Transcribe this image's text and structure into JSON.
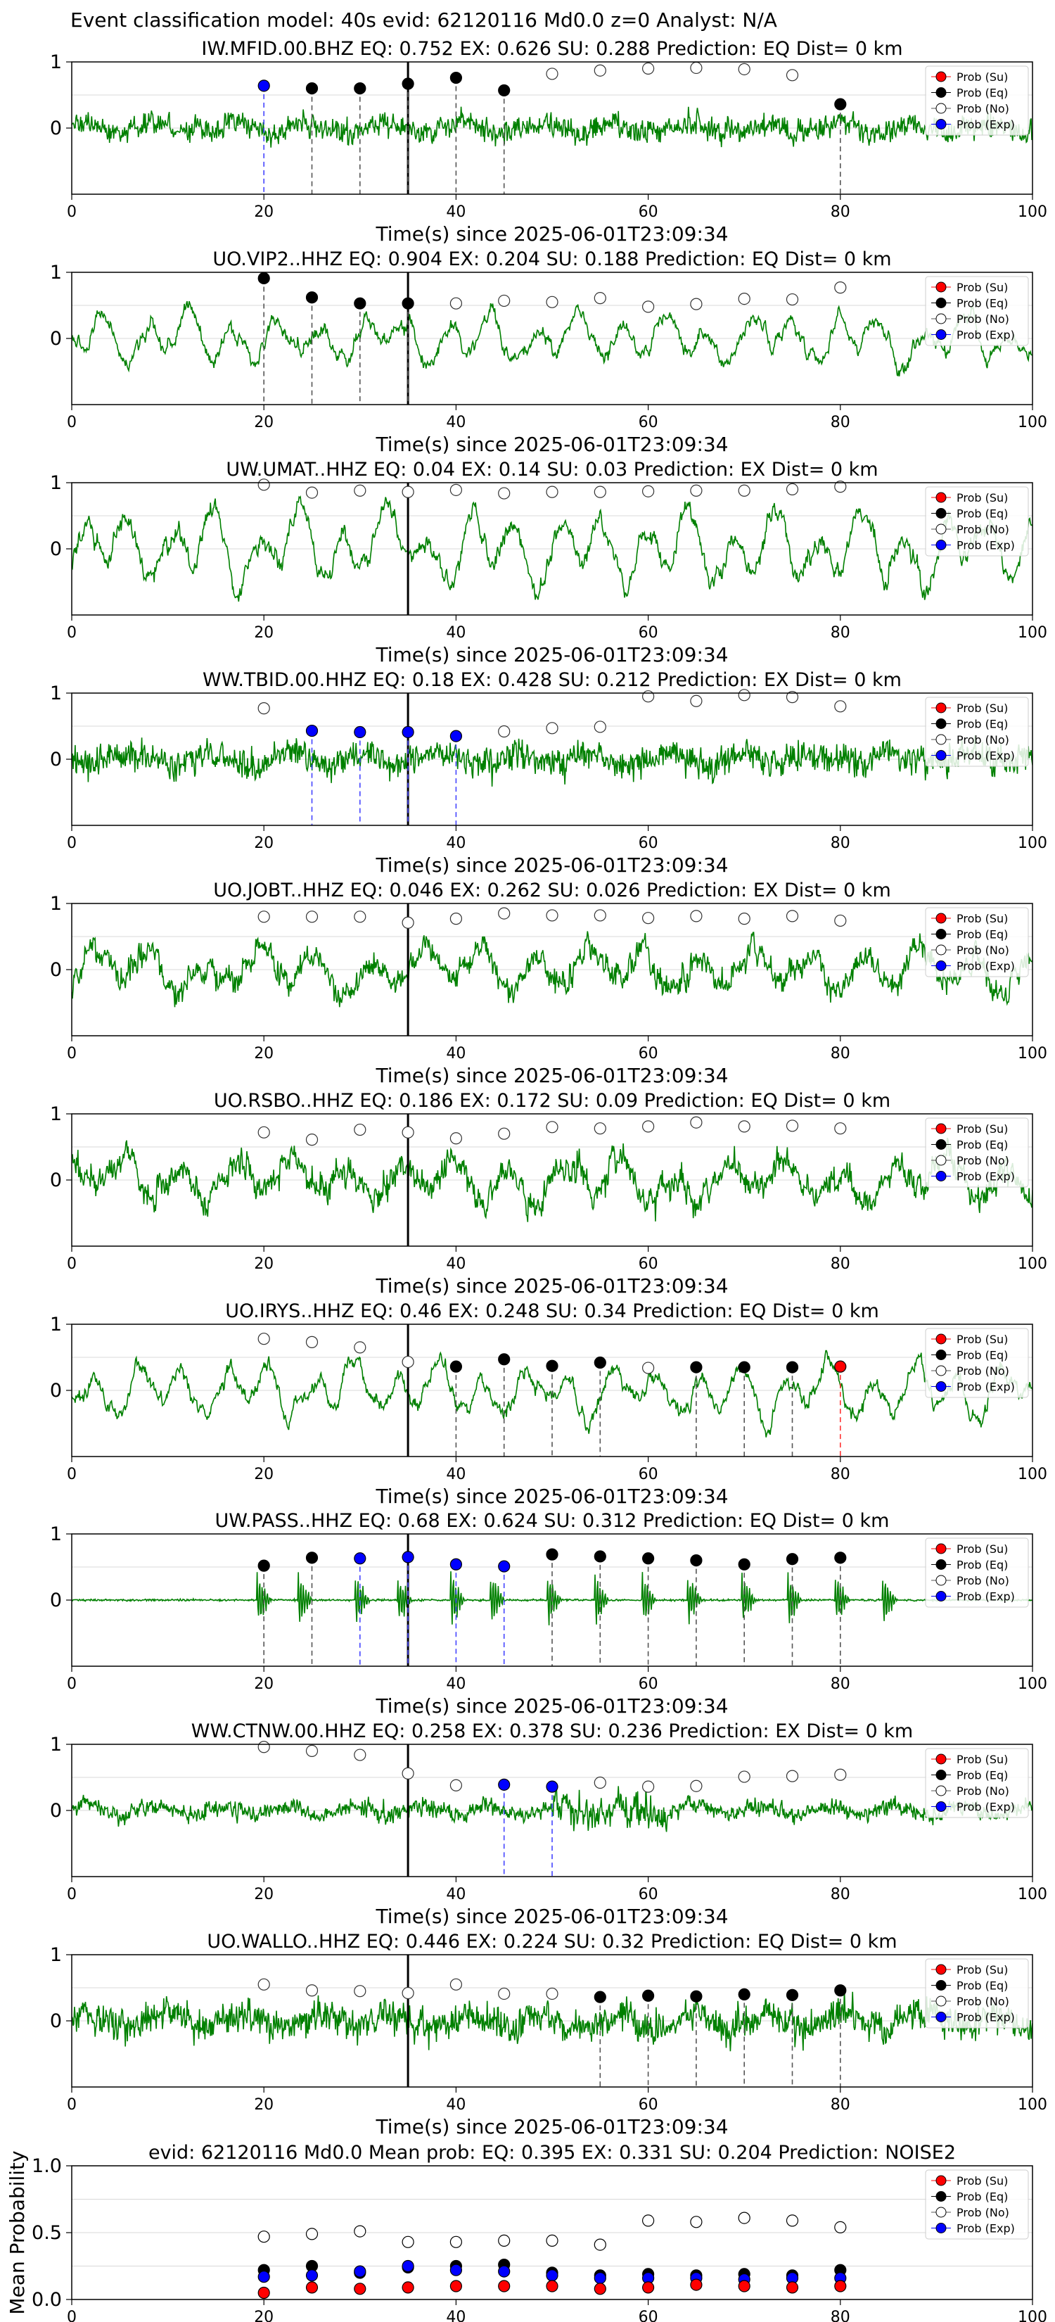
{
  "figure": {
    "suptitle": "Event classification model: 40s evid: 62120116 Md0.0 z=0 Analyst: N/A"
  },
  "legend_labels": [
    "Prob (Su)",
    "Prob (Eq)",
    "Prob (No)",
    "Prob (Exp)"
  ],
  "colors": {
    "trace": "#008000",
    "su": "#ff0000",
    "eq": "#000000",
    "no": "#ffffff",
    "exp": "#0000ff",
    "pick_line": "#000000",
    "grid": "#d8d8d8"
  },
  "chart_data": [
    {
      "type": "line",
      "title": "IW.MFID.00.BHZ   EQ: 0.752   EX: 0.626   SU: 0.288   Prediction: EQ    Dist= 0 km",
      "xlabel": "Time(s) since 2025-06-01T23:09:34",
      "xlim": [
        0,
        100
      ],
      "ylim": [
        -1,
        1
      ],
      "xticks": [
        0,
        20,
        40,
        60,
        80,
        100
      ],
      "yticks": [
        0,
        1
      ],
      "pick_time": 35,
      "trace_style": "noisy",
      "amplitude": 0.35,
      "window_times": [
        20,
        25,
        30,
        35,
        40,
        45,
        50,
        55,
        60,
        65,
        70,
        75,
        80
      ],
      "classes": [
        "exp",
        "eq",
        "eq",
        "eq",
        "eq",
        "eq",
        "no",
        "no",
        "no",
        "no",
        "no",
        "no",
        "eq"
      ],
      "probs": [
        0.64,
        0.6,
        0.6,
        0.67,
        0.76,
        0.57,
        0.82,
        0.87,
        0.9,
        0.91,
        0.89,
        0.8,
        0.36
      ]
    },
    {
      "type": "line",
      "title": "UO.VIP2..HHZ   EQ: 0.904   EX: 0.204   SU: 0.188   Prediction: EQ    Dist= 0 km",
      "xlabel": "Time(s) since 2025-06-01T23:09:34",
      "xlim": [
        0,
        100
      ],
      "ylim": [
        -1,
        1
      ],
      "xticks": [
        0,
        20,
        40,
        60,
        80,
        100
      ],
      "yticks": [
        0,
        1
      ],
      "pick_time": 35,
      "trace_style": "smooth",
      "amplitude": 0.45,
      "window_times": [
        20,
        25,
        30,
        35,
        40,
        45,
        50,
        55,
        60,
        65,
        70,
        75,
        80
      ],
      "classes": [
        "eq",
        "eq",
        "eq",
        "eq",
        "no",
        "no",
        "no",
        "no",
        "no",
        "no",
        "no",
        "no",
        "no"
      ],
      "probs": [
        0.91,
        0.62,
        0.53,
        0.53,
        0.53,
        0.57,
        0.55,
        0.61,
        0.48,
        0.52,
        0.6,
        0.59,
        0.77
      ]
    },
    {
      "type": "line",
      "title": "UW.UMAT..HHZ   EQ: 0.04   EX: 0.14   SU: 0.03   Prediction: EX    Dist= 0 km",
      "xlabel": "Time(s) since 2025-06-01T23:09:34",
      "xlim": [
        0,
        100
      ],
      "ylim": [
        -1,
        1
      ],
      "xticks": [
        0,
        20,
        40,
        60,
        80,
        100
      ],
      "yticks": [
        0,
        1
      ],
      "pick_time": 35,
      "trace_style": "smooth",
      "amplitude": 0.6,
      "window_times": [
        20,
        25,
        30,
        35,
        40,
        45,
        50,
        55,
        60,
        65,
        70,
        75,
        80
      ],
      "classes": [
        "no",
        "no",
        "no",
        "no",
        "no",
        "no",
        "no",
        "no",
        "no",
        "no",
        "no",
        "no",
        "no"
      ],
      "probs": [
        0.97,
        0.85,
        0.88,
        0.86,
        0.89,
        0.84,
        0.86,
        0.86,
        0.87,
        0.88,
        0.88,
        0.9,
        0.94
      ]
    },
    {
      "type": "line",
      "title": "WW.TBID.00.HHZ   EQ: 0.18   EX: 0.428   SU: 0.212   Prediction: EX    Dist= 0 km",
      "xlabel": "Time(s) since 2025-06-01T23:09:34",
      "xlim": [
        0,
        100
      ],
      "ylim": [
        -1,
        1
      ],
      "xticks": [
        0,
        20,
        40,
        60,
        80,
        100
      ],
      "yticks": [
        0,
        1
      ],
      "pick_time": 35,
      "trace_style": "noisy",
      "amplitude": 0.45,
      "window_times": [
        20,
        25,
        30,
        35,
        40,
        45,
        50,
        55,
        60,
        65,
        70,
        75,
        80
      ],
      "classes": [
        "no",
        "exp",
        "exp",
        "exp",
        "exp",
        "no",
        "no",
        "no",
        "no",
        "no",
        "no",
        "no",
        "no"
      ],
      "probs": [
        0.77,
        0.43,
        0.41,
        0.41,
        0.35,
        0.42,
        0.47,
        0.49,
        0.95,
        0.88,
        0.97,
        0.94,
        0.8
      ]
    },
    {
      "type": "line",
      "title": "UO.JOBT..HHZ   EQ: 0.046   EX: 0.262   SU: 0.026   Prediction: EX    Dist= 0 km",
      "xlabel": "Time(s) since 2025-06-01T23:09:34",
      "xlim": [
        0,
        100
      ],
      "ylim": [
        -1,
        1
      ],
      "xticks": [
        0,
        20,
        40,
        60,
        80,
        100
      ],
      "yticks": [
        0,
        1
      ],
      "pick_time": 35,
      "trace_style": "mixed",
      "amplitude": 0.55,
      "window_times": [
        20,
        25,
        30,
        35,
        40,
        45,
        50,
        55,
        60,
        65,
        70,
        75,
        80
      ],
      "classes": [
        "no",
        "no",
        "no",
        "no",
        "no",
        "no",
        "no",
        "no",
        "no",
        "no",
        "no",
        "no",
        "no"
      ],
      "probs": [
        0.8,
        0.8,
        0.8,
        0.71,
        0.77,
        0.85,
        0.82,
        0.82,
        0.78,
        0.81,
        0.77,
        0.81,
        0.74
      ]
    },
    {
      "type": "line",
      "title": "UO.RSBO..HHZ   EQ: 0.186   EX: 0.172   SU: 0.09   Prediction: EQ    Dist= 0 km",
      "xlabel": "Time(s) since 2025-06-01T23:09:34",
      "xlim": [
        0,
        100
      ],
      "ylim": [
        -1,
        1
      ],
      "xticks": [
        0,
        20,
        40,
        60,
        80,
        100
      ],
      "yticks": [
        0,
        1
      ],
      "pick_time": 35,
      "trace_style": "mixed",
      "amplitude": 0.6,
      "window_times": [
        20,
        25,
        30,
        35,
        40,
        45,
        50,
        55,
        60,
        65,
        70,
        75,
        80
      ],
      "classes": [
        "no",
        "no",
        "no",
        "no",
        "no",
        "no",
        "no",
        "no",
        "no",
        "no",
        "no",
        "no",
        "no"
      ],
      "probs": [
        0.72,
        0.61,
        0.76,
        0.72,
        0.63,
        0.7,
        0.8,
        0.78,
        0.81,
        0.87,
        0.81,
        0.82,
        0.78
      ]
    },
    {
      "type": "line",
      "title": "UO.IRYS..HHZ   EQ: 0.46   EX: 0.248   SU: 0.34   Prediction: EQ    Dist= 0 km",
      "xlabel": "Time(s) since 2025-06-01T23:09:34",
      "xlim": [
        0,
        100
      ],
      "ylim": [
        -1,
        1
      ],
      "xticks": [
        0,
        20,
        40,
        60,
        80,
        100
      ],
      "yticks": [
        0,
        1
      ],
      "pick_time": 35,
      "trace_style": "smooth",
      "amplitude": 0.5,
      "window_times": [
        20,
        25,
        30,
        35,
        40,
        45,
        50,
        55,
        60,
        65,
        70,
        75,
        80
      ],
      "classes": [
        "no",
        "no",
        "no",
        "no",
        "eq",
        "eq",
        "eq",
        "eq",
        "no",
        "eq",
        "eq",
        "eq",
        "su"
      ],
      "probs": [
        0.78,
        0.73,
        0.65,
        0.43,
        0.36,
        0.47,
        0.37,
        0.42,
        0.34,
        0.35,
        0.35,
        0.35,
        0.36
      ]
    },
    {
      "type": "line",
      "title": "UW.PASS..HHZ   EQ: 0.68   EX: 0.624   SU: 0.312   Prediction: EQ    Dist= 0 km",
      "xlabel": "Time(s) since 2025-06-01T23:09:34",
      "xlim": [
        0,
        100
      ],
      "ylim": [
        -1,
        1
      ],
      "xticks": [
        0,
        20,
        40,
        60,
        80,
        100
      ],
      "yticks": [
        0,
        1
      ],
      "pick_time": 35,
      "trace_style": "spiky",
      "amplitude": 0.12,
      "window_times": [
        20,
        25,
        30,
        35,
        40,
        45,
        50,
        55,
        60,
        65,
        70,
        75,
        80
      ],
      "classes": [
        "eq",
        "eq",
        "exp",
        "exp",
        "exp",
        "exp",
        "eq",
        "eq",
        "eq",
        "eq",
        "eq",
        "eq",
        "eq"
      ],
      "probs": [
        0.52,
        0.64,
        0.63,
        0.65,
        0.54,
        0.51,
        0.69,
        0.66,
        0.63,
        0.6,
        0.54,
        0.62,
        0.64
      ]
    },
    {
      "type": "line",
      "title": "WW.CTNW.00.HHZ   EQ: 0.258   EX: 0.378   SU: 0.236   Prediction: EX    Dist= 0 km",
      "xlabel": "Time(s) since 2025-06-01T23:09:34",
      "xlim": [
        0,
        100
      ],
      "ylim": [
        -1,
        1
      ],
      "xticks": [
        0,
        20,
        40,
        60,
        80,
        100
      ],
      "yticks": [
        0,
        1
      ],
      "pick_time": 35,
      "trace_style": "burst",
      "amplitude": 0.3,
      "window_times": [
        20,
        25,
        30,
        35,
        40,
        45,
        50,
        55,
        60,
        65,
        70,
        75,
        80
      ],
      "classes": [
        "no",
        "no",
        "no",
        "no",
        "no",
        "exp",
        "exp",
        "no",
        "no",
        "no",
        "no",
        "no",
        "no"
      ],
      "probs": [
        0.96,
        0.9,
        0.84,
        0.56,
        0.38,
        0.39,
        0.36,
        0.42,
        0.36,
        0.37,
        0.51,
        0.52,
        0.54
      ]
    },
    {
      "type": "line",
      "title": "UO.WALLO..HHZ   EQ: 0.446   EX: 0.224   SU: 0.32   Prediction: EQ    Dist= 0 km",
      "xlabel": "Time(s) since 2025-06-01T23:09:34",
      "xlim": [
        0,
        100
      ],
      "ylim": [
        -1,
        1
      ],
      "xticks": [
        0,
        20,
        40,
        60,
        80,
        100
      ],
      "yticks": [
        0,
        1
      ],
      "pick_time": 35,
      "trace_style": "noisy",
      "amplitude": 0.5,
      "window_times": [
        20,
        25,
        30,
        35,
        40,
        45,
        50,
        55,
        60,
        65,
        70,
        75,
        80
      ],
      "classes": [
        "no",
        "no",
        "no",
        "no",
        "no",
        "no",
        "no",
        "eq",
        "eq",
        "eq",
        "eq",
        "eq",
        "eq"
      ],
      "probs": [
        0.55,
        0.46,
        0.45,
        0.42,
        0.55,
        0.41,
        0.41,
        0.36,
        0.38,
        0.37,
        0.4,
        0.39,
        0.46
      ]
    },
    {
      "type": "scatter",
      "title": "evid: 62120116  Md0.0   Mean prob:   EQ: 0.395   EX: 0.331   SU: 0.204   Prediction: NOISE2",
      "xlabel": "",
      "ylabel": "Mean Probability",
      "xlim": [
        0,
        100
      ],
      "ylim": [
        0,
        1
      ],
      "xticks": [
        0,
        20,
        40,
        60,
        80,
        100
      ],
      "yticks": [
        0.0,
        0.5,
        1.0
      ],
      "ytick_labels": [
        "0.0",
        "0.5",
        "1.0"
      ],
      "x": [
        20,
        25,
        30,
        35,
        40,
        45,
        50,
        55,
        60,
        65,
        70,
        75,
        80
      ],
      "series": [
        {
          "name": "Prob (Su)",
          "values": [
            0.05,
            0.09,
            0.08,
            0.09,
            0.1,
            0.1,
            0.1,
            0.08,
            0.09,
            0.11,
            0.1,
            0.09,
            0.1
          ]
        },
        {
          "name": "Prob (Eq)",
          "values": [
            0.22,
            0.25,
            0.2,
            0.24,
            0.25,
            0.26,
            0.2,
            0.18,
            0.19,
            0.18,
            0.19,
            0.18,
            0.22
          ]
        },
        {
          "name": "Prob (No)",
          "values": [
            0.47,
            0.49,
            0.51,
            0.43,
            0.43,
            0.44,
            0.44,
            0.41,
            0.59,
            0.58,
            0.61,
            0.59,
            0.54
          ]
        },
        {
          "name": "Prob (Exp)",
          "values": [
            0.17,
            0.18,
            0.21,
            0.25,
            0.22,
            0.21,
            0.18,
            0.16,
            0.16,
            0.16,
            0.15,
            0.16,
            0.16
          ]
        }
      ]
    }
  ]
}
